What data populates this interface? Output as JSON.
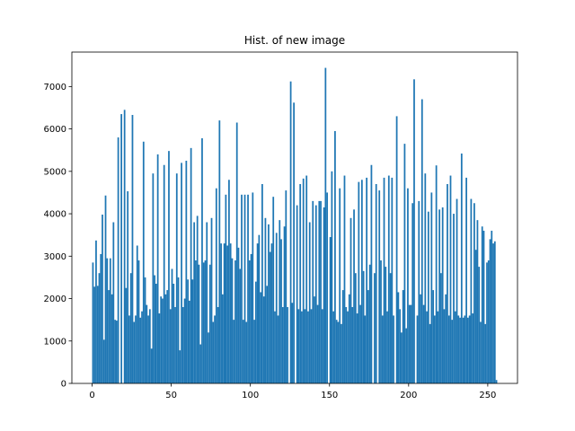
{
  "chart_data": {
    "type": "histogram",
    "title": "Hist. of new image",
    "color": "#1f77b4",
    "bins": [
      0,
      1,
      2,
      3,
      4,
      5,
      6,
      7,
      8,
      9,
      10,
      11,
      12,
      13,
      14,
      15,
      16,
      17,
      18,
      19,
      20,
      21,
      22,
      23,
      24,
      25,
      26,
      27,
      28,
      29,
      30,
      31,
      32,
      33,
      34,
      35,
      36,
      37,
      38,
      39,
      40,
      41,
      42,
      43,
      44,
      45,
      46,
      47,
      48,
      49,
      50,
      51,
      52,
      53,
      54,
      55,
      56,
      57,
      58,
      59,
      60,
      61,
      62,
      63,
      64,
      65,
      66,
      67,
      68,
      69,
      70,
      71,
      72,
      73,
      74,
      75,
      76,
      77,
      78,
      79,
      80,
      81,
      82,
      83,
      84,
      85,
      86,
      87,
      88,
      89,
      90,
      91,
      92,
      93,
      94,
      95,
      96,
      97,
      98,
      99,
      100,
      101,
      102,
      103,
      104,
      105,
      106,
      107,
      108,
      109,
      110,
      111,
      112,
      113,
      114,
      115,
      116,
      117,
      118,
      119,
      120,
      121,
      122,
      123,
      124,
      125,
      126,
      127,
      128,
      129,
      130,
      131,
      132,
      133,
      134,
      135,
      136,
      137,
      138,
      139,
      140,
      141,
      142,
      143,
      144,
      145,
      146,
      147,
      148,
      149,
      150,
      151,
      152,
      153,
      154,
      155,
      156,
      157,
      158,
      159,
      160,
      161,
      162,
      163,
      164,
      165,
      166,
      167,
      168,
      169,
      170,
      171,
      172,
      173,
      174,
      175,
      176,
      177,
      178,
      179,
      180,
      181,
      182,
      183,
      184,
      185,
      186,
      187,
      188,
      189,
      190,
      191,
      192,
      193,
      194,
      195,
      196,
      197,
      198,
      199,
      200,
      201,
      202,
      203,
      204,
      205,
      206,
      207,
      208,
      209,
      210,
      211,
      212,
      213,
      214,
      215,
      216,
      217,
      218,
      219,
      220,
      221,
      222,
      223,
      224,
      225,
      226,
      227,
      228,
      229,
      230,
      231,
      232,
      233,
      234,
      235,
      236,
      237,
      238,
      239,
      240,
      241,
      242,
      243,
      244,
      245,
      246,
      247,
      248,
      249,
      250,
      251,
      252,
      253,
      254,
      255,
      256
    ],
    "values": [
      2850,
      2280,
      3370,
      2300,
      2600,
      3050,
      3980,
      1030,
      4430,
      2950,
      2200,
      2950,
      2100,
      3800,
      1500,
      1480,
      5800,
      0,
      6350,
      0,
      6450,
      2250,
      4530,
      1600,
      2600,
      6330,
      1450,
      1600,
      3250,
      2900,
      1550,
      1700,
      5700,
      2500,
      1850,
      1600,
      1750,
      820,
      4950,
      2550,
      2350,
      5400,
      1650,
      2050,
      2000,
      5150,
      2100,
      2200,
      5480,
      1750,
      2700,
      2350,
      1800,
      4950,
      2500,
      780,
      5200,
      1800,
      2000,
      5250,
      2450,
      1950,
      5550,
      2450,
      3800,
      2900,
      3950,
      2800,
      920,
      5780,
      2850,
      2900,
      3800,
      1200,
      2800,
      3900,
      1450,
      1600,
      4600,
      1800,
      6200,
      3300,
      2100,
      3300,
      4450,
      3250,
      4800,
      3300,
      2950,
      1500,
      2900,
      6150,
      3200,
      2700,
      4450,
      1500,
      4450,
      1450,
      4450,
      2900,
      3050,
      4500,
      1500,
      2400,
      3300,
      3500,
      2150,
      4700,
      2050,
      3900,
      2300,
      3750,
      3100,
      3300,
      4400,
      1700,
      3550,
      1600,
      3850,
      3400,
      1800,
      3700,
      4550,
      1800,
      0,
      7120,
      1900,
      6620,
      0,
      4200,
      1750,
      4700,
      1700,
      4830,
      1750,
      4900,
      1700,
      3800,
      1750,
      4300,
      2050,
      4200,
      1850,
      4300,
      4300,
      1750,
      4150,
      7440,
      4500,
      0,
      3450,
      5000,
      1700,
      5950,
      1500,
      1450,
      4600,
      1400,
      2200,
      4900,
      1800,
      1700,
      2100,
      3900,
      1800,
      4100,
      2600,
      1650,
      4750,
      1850,
      4800,
      2650,
      1600,
      4850,
      2200,
      2800,
      5150,
      0,
      2600,
      4700,
      0,
      4550,
      2900,
      1600,
      4850,
      2750,
      1700,
      4900,
      2600,
      4850,
      1600,
      0,
      6300,
      2150,
      1750,
      1200,
      2200,
      5650,
      1300,
      4600,
      1850,
      1850,
      4250,
      7170,
      0,
      1600,
      4300,
      2100,
      6700,
      1850,
      4950,
      1700,
      4050,
      1400,
      4500,
      2200,
      1600,
      5140,
      1700,
      4100,
      2600,
      4150,
      1750,
      2100,
      4700,
      1600,
      4900,
      1500,
      4000,
      1700,
      4350,
      1600,
      1550,
      5420,
      1550,
      1600,
      4850,
      1550,
      1600,
      4350,
      1650,
      4250,
      3150,
      3850,
      2750,
      1450,
      3700,
      3600,
      1400,
      2850,
      2900,
      3400,
      3600,
      3300,
      3350,
      80
    ],
    "xlim": [
      -12.8,
      268.8
    ],
    "xticks": [
      0,
      50,
      100,
      150,
      200,
      250
    ],
    "ylim": [
      0,
      7812
    ],
    "yticks": [
      0,
      1000,
      2000,
      3000,
      4000,
      5000,
      6000,
      7000
    ]
  }
}
